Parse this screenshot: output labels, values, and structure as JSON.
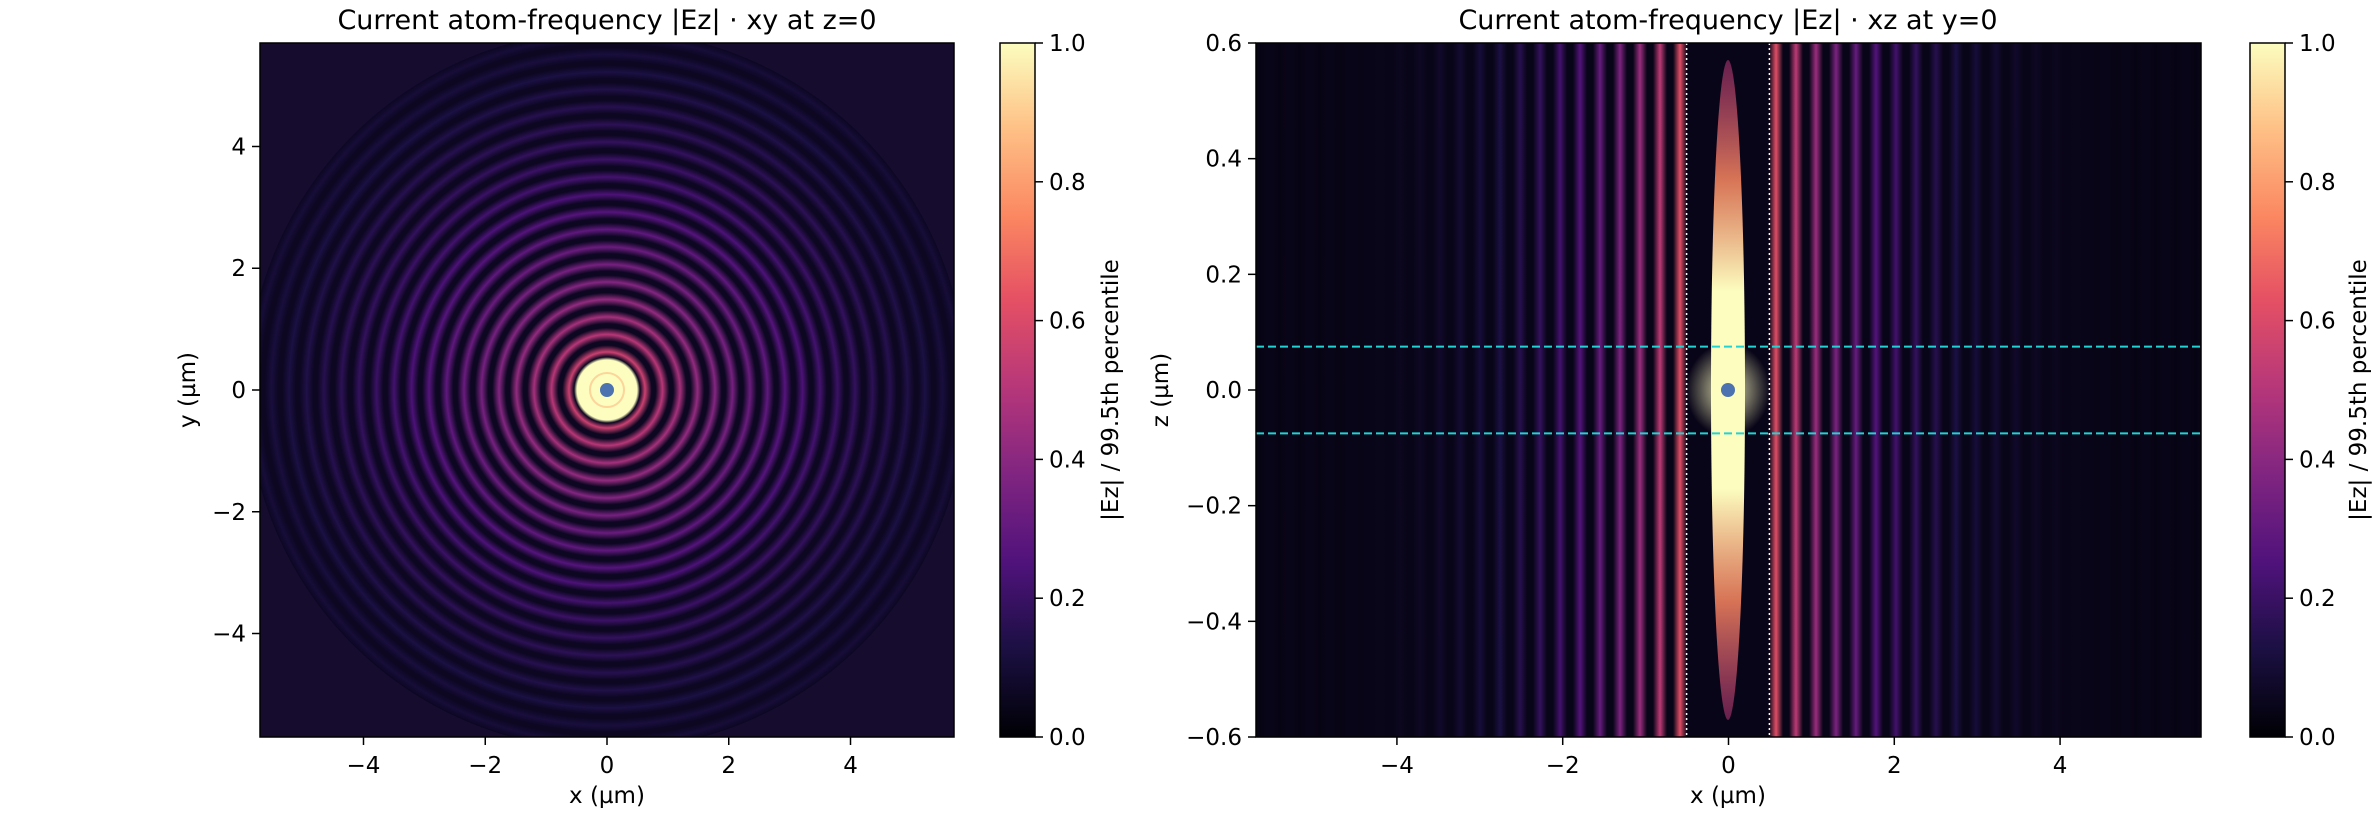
{
  "chart_data": [
    {
      "type": "heatmap",
      "title": "Current atom-frequency |Ez| · xy at z=0",
      "xlabel": "x (µm)",
      "ylabel": "y (µm)",
      "xlim": [
        -5.7,
        5.7
      ],
      "ylim": [
        -5.7,
        5.7
      ],
      "xticks": [
        -4,
        -2,
        0,
        2,
        4
      ],
      "yticks": [
        -4,
        -2,
        0,
        2,
        4
      ],
      "colormap": "magma",
      "colorbar": {
        "label": "|Ez| / 99.5th percentile",
        "range": [
          0.0,
          1.0
        ],
        "ticks": [
          0.0,
          0.2,
          0.4,
          0.6,
          0.8,
          1.0
        ]
      },
      "field_pattern": "concentric circular rings centered at origin, saturated core of radius ~0.45 µm, rings fading out to radius ~4.8 µm",
      "markers": [
        {
          "name": "atom",
          "x": 0,
          "y": 0,
          "color": "#4c72b0"
        }
      ],
      "grid": false
    },
    {
      "type": "heatmap",
      "title": "Current atom-frequency |Ez| · xz at y=0",
      "xlabel": "x (µm)",
      "ylabel": "z (µm)",
      "xlim": [
        -5.7,
        5.7
      ],
      "ylim": [
        -0.6,
        0.6
      ],
      "xticks": [
        -4,
        -2,
        0,
        2,
        4
      ],
      "yticks": [
        -0.6,
        -0.4,
        -0.2,
        0.0,
        0.2,
        0.4,
        0.6
      ],
      "colormap": "magma",
      "colorbar": {
        "label": "|Ez| / 99.5th percentile",
        "range": [
          0.0,
          1.0
        ],
        "ticks": [
          0.0,
          0.2,
          0.4,
          0.6,
          0.8,
          1.0
        ]
      },
      "field_pattern": "vertical fringes symmetric about x=0, bright central column between x=-0.5 and x=0.5 µm",
      "markers": [
        {
          "name": "atom",
          "x": 0,
          "y": 0,
          "color": "#4c72b0"
        }
      ],
      "hlines": [
        {
          "y": 0.075,
          "style": "dashed",
          "color": "#22d3d3"
        },
        {
          "y": -0.075,
          "style": "dashed",
          "color": "#22d3d3"
        }
      ],
      "vlines": [
        {
          "x": -0.5,
          "style": "dotted",
          "color": "#ffffff"
        },
        {
          "x": 0.5,
          "style": "dotted",
          "color": "#ffffff"
        }
      ],
      "grid": false
    }
  ]
}
